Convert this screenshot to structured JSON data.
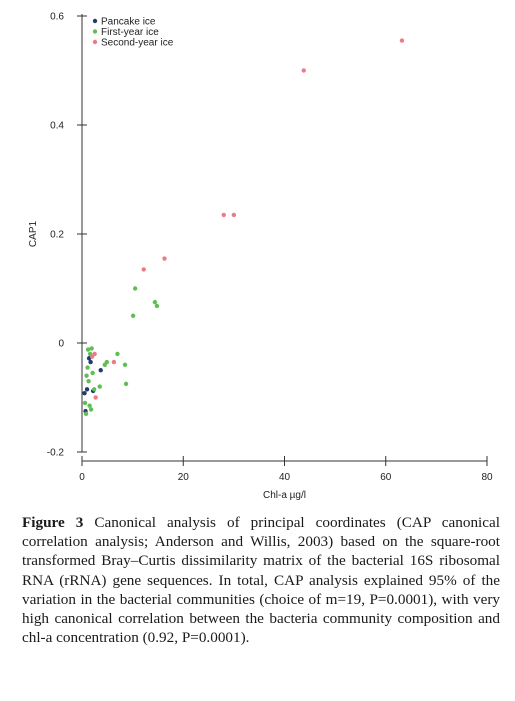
{
  "chart_data": {
    "type": "scatter",
    "xlabel": "Chl-a µg/l",
    "ylabel": "CAP1",
    "xlim": [
      0,
      80
    ],
    "ylim": [
      -0.2,
      0.6
    ],
    "x_ticks": [
      0,
      20,
      40,
      60,
      80
    ],
    "y_ticks": [
      -0.2,
      0,
      0.2,
      0.4,
      0.6
    ],
    "x_tick_labels": [
      "0",
      "20",
      "40",
      "60",
      "80"
    ],
    "y_tick_labels": [
      "-0.2",
      "0",
      "0.2",
      "0.4",
      "0.6"
    ],
    "grid": false,
    "legend_position": "top-left",
    "series": [
      {
        "name": "Pancake ice",
        "color": "#1f3b70",
        "points": [
          {
            "x": 0.5,
            "y": -0.092
          },
          {
            "x": 1.0,
            "y": -0.085
          },
          {
            "x": 1.4,
            "y": -0.028
          },
          {
            "x": 1.7,
            "y": -0.035
          },
          {
            "x": 2.2,
            "y": -0.088
          },
          {
            "x": 0.7,
            "y": -0.125
          },
          {
            "x": 3.7,
            "y": -0.05
          }
        ]
      },
      {
        "name": "First-year ice",
        "color": "#5fbf52",
        "points": [
          {
            "x": 0.6,
            "y": -0.11
          },
          {
            "x": 0.9,
            "y": -0.06
          },
          {
            "x": 1.1,
            "y": -0.045
          },
          {
            "x": 1.3,
            "y": -0.07
          },
          {
            "x": 1.6,
            "y": -0.02
          },
          {
            "x": 1.9,
            "y": -0.01
          },
          {
            "x": 2.1,
            "y": -0.055
          },
          {
            "x": 1.5,
            "y": -0.115
          },
          {
            "x": 1.8,
            "y": -0.122
          },
          {
            "x": 2.4,
            "y": -0.085
          },
          {
            "x": 0.8,
            "y": -0.13
          },
          {
            "x": 3.5,
            "y": -0.08
          },
          {
            "x": 4.5,
            "y": -0.04
          },
          {
            "x": 4.9,
            "y": -0.035
          },
          {
            "x": 7.0,
            "y": -0.02
          },
          {
            "x": 8.5,
            "y": -0.04
          },
          {
            "x": 8.7,
            "y": -0.075
          },
          {
            "x": 10.1,
            "y": 0.05
          },
          {
            "x": 10.5,
            "y": 0.1
          },
          {
            "x": 14.4,
            "y": 0.075
          },
          {
            "x": 14.8,
            "y": 0.068
          },
          {
            "x": 1.2,
            "y": -0.012
          }
        ]
      },
      {
        "name": "Second-year ice",
        "color": "#ec7b86",
        "points": [
          {
            "x": 2.0,
            "y": -0.025
          },
          {
            "x": 2.5,
            "y": -0.02
          },
          {
            "x": 2.7,
            "y": -0.1
          },
          {
            "x": 6.3,
            "y": -0.035
          },
          {
            "x": 12.2,
            "y": 0.135
          },
          {
            "x": 16.3,
            "y": 0.155
          },
          {
            "x": 28.0,
            "y": 0.235
          },
          {
            "x": 30.0,
            "y": 0.235
          },
          {
            "x": 43.8,
            "y": 0.5
          },
          {
            "x": 63.2,
            "y": 0.555
          }
        ]
      }
    ]
  },
  "caption": {
    "label": "Figure 3",
    "text": " Canonical analysis of principal coordinates (CAP canonical correlation analysis; Anderson and Willis, 2003) based on the square-root transformed Bray–Curtis dissimilarity matrix of the bacterial 16S ribosomal RNA (rRNA) gene sequences. In total, CAP analysis explained 95% of the variation in the bacterial communities (choice of m=19, P=0.0001), with very high canonical correlation between the bacteria community composition and chl-a concentration (0.92, P=0.0001)."
  }
}
